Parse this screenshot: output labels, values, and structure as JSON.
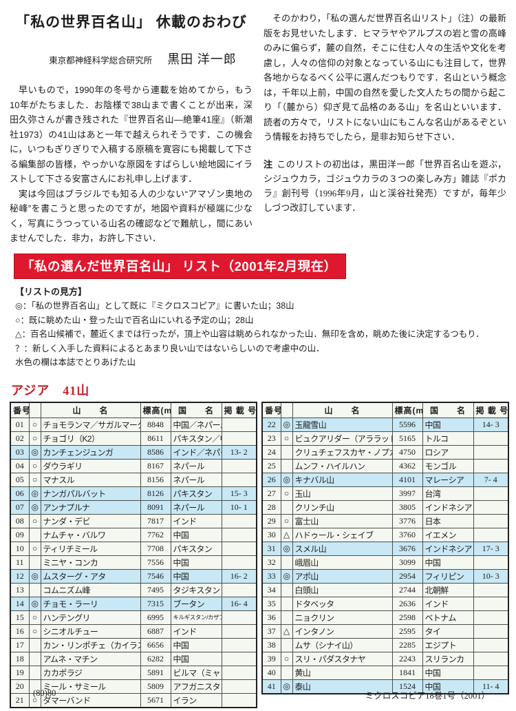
{
  "article": {
    "title": "「私の世界百名山」 休載のおわび",
    "affiliation": "東京都神経科学総合研究所",
    "author": "黒田 洋一郎",
    "left_paragraphs": [
      "早いもので，1990年の冬号から連載を始めてから，もう10年がたちました．お陰様で38山まで書くことが出来，深田久弥さんが書き残された『世界百名山―絶筆41座』（新潮社1973）の41山はあと一年で越えられそうです．この機会に，いつもぎりぎりで入稿する原稿を寛容にも掲載して下さる編集部の皆様，やっかいな原図をすばらしい絵地図にイラストして下さる安富さんにお礼申し上げます．",
      "実は今回はブラジルでも知る人の少ない“アマゾン奥地の秘峰”を書こうと思ったのですが，地図や資料が極端に少なく，写真にうつっている山名の確認などで難航し，間にあいませんでした．非力，お許し下さい．"
    ],
    "right_paragraph": "そのかわり，「私の選んだ世界百名山リスト」（注）の最新版をお見せいたします．ヒマラヤやアルプスの岩と雪の高峰のみに偏らず，麓の自然，そこに住む人々の生活や文化を考慮し，人々の信仰の対象となっている山にも注目して，世界各地からなるべく公平に選んだつもりです．名山という概念は，千年以上前，中国の自然を愛した文人たちの間から起こり「（麓から）仰ぎ見て品格のある山」を名山といいます．読者の方々で，リストにない山にもこんな名山があるぞという情報をお持ちでしたら，是非お知らせ下さい．",
    "note_label": "注",
    "note_text": "このリストの初出は，黒田洋一郎「世界百名山を遊ぶ，シジュウカラ，ゴジュウカラの３つの楽しみ方」雑誌『ポカラ』創刊号（1996年9月，山と渓谷社発売）ですが，毎年少しづつ改訂しています．"
  },
  "list_section": {
    "banner": "「私の選んだ世界百名山」 リスト（2001年2月現在）",
    "legend_title": "【リストの見方】",
    "legend_items": [
      "◎：「私の世界百名山」として既に『ミクロスコピア』に書いた山；38山",
      "○：既に眺めた山・登った山で百名山にいれる予定の山；28山",
      "△：百名山候補で，麓近くまでは行ったが，頂上や山容は眺められなかった山．無印を含め，眺めた後に決定するつもり．",
      "？：新しく入手した資料によるとあまり良い山ではないらしいので考慮中の山．",
      "水色の欄は本誌でとりあげた山"
    ]
  },
  "table_section": {
    "heading": "アジア　41山",
    "columns": [
      "番号",
      "",
      "山　　名",
      "標高(m)",
      "国　　名",
      "掲 載 号"
    ],
    "left_rows": [
      {
        "no": "01",
        "sym": "○",
        "name": "チョモランマ／サガルマータ",
        "elev": "8848",
        "country": "中国／ネパール",
        "issue": ""
      },
      {
        "no": "02",
        "sym": "○",
        "name": "チョゴリ（K2）",
        "elev": "8611",
        "country": "パキスタン／中国",
        "issue": ""
      },
      {
        "no": "03",
        "sym": "◎",
        "name": "カンチェンジュンガ",
        "elev": "8586",
        "country": "インド／ネパール",
        "issue": "13- 2",
        "hl": true
      },
      {
        "no": "04",
        "sym": "○",
        "name": "ダウラギリ",
        "elev": "8167",
        "country": "ネパール",
        "issue": ""
      },
      {
        "no": "05",
        "sym": "○",
        "name": "マナスル",
        "elev": "8156",
        "country": "ネパール",
        "issue": ""
      },
      {
        "no": "06",
        "sym": "◎",
        "name": "ナンガパルバット",
        "elev": "8126",
        "country": "パキスタン",
        "issue": "15- 3",
        "hl": true
      },
      {
        "no": "07",
        "sym": "◎",
        "name": "アンナプルナ",
        "elev": "8091",
        "country": "ネパール",
        "issue": "10- 1",
        "hl": true
      },
      {
        "no": "08",
        "sym": "○",
        "name": "ナンダ・デビ",
        "elev": "7817",
        "country": "インド",
        "issue": ""
      },
      {
        "no": "09",
        "sym": "",
        "name": "ナムチャ・バルワ",
        "elev": "7762",
        "country": "中国",
        "issue": ""
      },
      {
        "no": "10",
        "sym": "○",
        "name": "ティリチミール",
        "elev": "7708",
        "country": "パキスタン",
        "issue": ""
      },
      {
        "no": "11",
        "sym": "",
        "name": "ミニヤ・コンカ",
        "elev": "7556",
        "country": "中国",
        "issue": ""
      },
      {
        "no": "12",
        "sym": "◎",
        "name": "ムスターグ・アタ",
        "elev": "7546",
        "country": "中国",
        "issue": "16- 2",
        "hl": true
      },
      {
        "no": "13",
        "sym": "",
        "name": "コムニズム峰",
        "elev": "7495",
        "country": "タジキスタン",
        "issue": ""
      },
      {
        "no": "14",
        "sym": "◎",
        "name": "チョモ・ラーリ",
        "elev": "7315",
        "country": "ブータン",
        "issue": "16- 4",
        "hl": true
      },
      {
        "no": "15",
        "sym": "○",
        "name": "ハンテングリ",
        "elev": "6995",
        "country": "キルギスタン/カザフスタン",
        "issue": "",
        "small": true
      },
      {
        "no": "16",
        "sym": "○",
        "name": "シニオルチュー",
        "elev": "6887",
        "country": "インド",
        "issue": ""
      },
      {
        "no": "17",
        "sym": "",
        "name": "カン・リンポチェ（カイラス）",
        "elev": "6656",
        "country": "中国",
        "issue": ""
      },
      {
        "no": "18",
        "sym": "",
        "name": "アムネ・マチン",
        "elev": "6282",
        "country": "中国",
        "issue": ""
      },
      {
        "no": "19",
        "sym": "",
        "name": "カカポラジ",
        "elev": "5891",
        "country": "ビルマ（ミャンマー）",
        "issue": ""
      },
      {
        "no": "20",
        "sym": "",
        "name": "ミール・サミール",
        "elev": "5809",
        "country": "アフガニスタン",
        "issue": ""
      },
      {
        "no": "21",
        "sym": "○",
        "name": "ダマーバンド",
        "elev": "5671",
        "country": "イラン",
        "issue": ""
      }
    ],
    "right_rows": [
      {
        "no": "22",
        "sym": "◎",
        "name": "玉龍雪山",
        "elev": "5596",
        "country": "中国",
        "issue": "14- 3",
        "hl": true
      },
      {
        "no": "23",
        "sym": "○",
        "name": "ビュクアリダー（アララット）",
        "elev": "5165",
        "country": "トルコ",
        "issue": ""
      },
      {
        "no": "24",
        "sym": "",
        "name": "クリュチェフスカヤ・ノプカ",
        "elev": "4750",
        "country": "ロシア",
        "issue": ""
      },
      {
        "no": "25",
        "sym": "",
        "name": "ムンフ・ハイルハン",
        "elev": "4362",
        "country": "モンゴル",
        "issue": ""
      },
      {
        "no": "26",
        "sym": "◎",
        "name": "キナバル山",
        "elev": "4101",
        "country": "マレーシア",
        "issue": "7- 4",
        "hl": true
      },
      {
        "no": "27",
        "sym": "○",
        "name": "玉山",
        "elev": "3997",
        "country": "台湾",
        "issue": ""
      },
      {
        "no": "28",
        "sym": "",
        "name": "クリンチ山",
        "elev": "3805",
        "country": "インドネシア",
        "issue": ""
      },
      {
        "no": "29",
        "sym": "○",
        "name": "富士山",
        "elev": "3776",
        "country": "日本",
        "issue": ""
      },
      {
        "no": "30",
        "sym": "△",
        "name": "ハドゥール・シェイブ",
        "elev": "3760",
        "country": "イエメン",
        "issue": ""
      },
      {
        "no": "31",
        "sym": "◎",
        "name": "スメル山",
        "elev": "3676",
        "country": "インドネシア",
        "issue": "17- 3",
        "hl": true
      },
      {
        "no": "32",
        "sym": "",
        "name": "峨眉山",
        "elev": "3099",
        "country": "中国",
        "issue": ""
      },
      {
        "no": "33",
        "sym": "◎",
        "name": "アポ山",
        "elev": "2954",
        "country": "フィリピン",
        "issue": "10- 3",
        "hl": true
      },
      {
        "no": "34",
        "sym": "",
        "name": "白頭山",
        "elev": "2744",
        "country": "北朝鮮",
        "issue": ""
      },
      {
        "no": "35",
        "sym": "",
        "name": "ドタベッタ",
        "elev": "2636",
        "country": "インド",
        "issue": ""
      },
      {
        "no": "36",
        "sym": "",
        "name": "ニョクリン",
        "elev": "2598",
        "country": "ベトナム",
        "issue": ""
      },
      {
        "no": "37",
        "sym": "△",
        "name": "インタノン",
        "elev": "2595",
        "country": "タイ",
        "issue": ""
      },
      {
        "no": "38",
        "sym": "",
        "name": "ムサ（シナイ山）",
        "elev": "2285",
        "country": "エジプト",
        "issue": ""
      },
      {
        "no": "39",
        "sym": "○",
        "name": "スリ・パダスタナヤ",
        "elev": "2243",
        "country": "スリランカ",
        "issue": ""
      },
      {
        "no": "40",
        "sym": "",
        "name": "黄山",
        "elev": "1841",
        "country": "中国",
        "issue": ""
      },
      {
        "no": "41",
        "sym": "◎",
        "name": "泰山",
        "elev": "1524",
        "country": "中国",
        "issue": "11- 4",
        "hl": true
      }
    ]
  },
  "footer": {
    "left": "(80)80",
    "right": "ミクロスコピア18巻1号（2001）"
  },
  "colors": {
    "banner_red": "#e0182d",
    "heading_red": "#c8202a",
    "highlight_blue": "#c9e8f5",
    "row_bg": "#f5f8f1"
  }
}
